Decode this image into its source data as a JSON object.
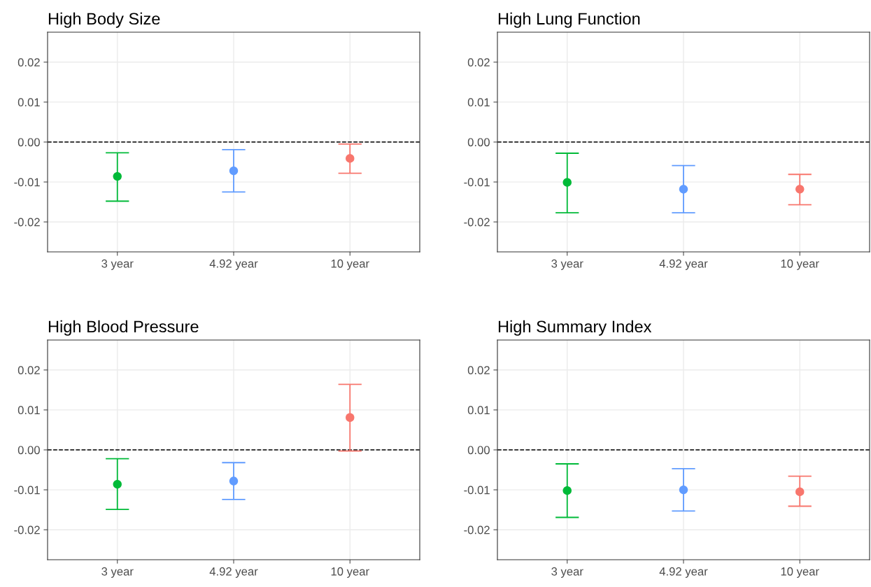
{
  "chart_data": [
    {
      "type": "scatter",
      "title": "High Body Size",
      "categories": [
        "3 year",
        "4.92 year",
        "10 year"
      ],
      "values": [
        -0.0086,
        -0.0072,
        -0.0041
      ],
      "colors": [
        "#00ba38",
        "#619cff",
        "#f8766d"
      ],
      "errors": [
        [
          -0.0148,
          -0.0027
        ],
        [
          -0.0125,
          -0.0019
        ],
        [
          -0.0078,
          -0.0005
        ]
      ],
      "ylim": [
        -0.0275,
        0.0275
      ],
      "yticks": [
        {
          "value": -0.02,
          "label": "-0.02"
        },
        {
          "value": -0.01,
          "label": "-0.01"
        },
        {
          "value": 0,
          "label": "0.00"
        },
        {
          "value": 0.01,
          "label": "0.01"
        },
        {
          "value": 0.02,
          "label": "0.02"
        }
      ],
      "grid": true,
      "marker": "circle",
      "ref_lines": [
        {
          "axis": "y",
          "value": 0,
          "color": "#000000",
          "line_style": "dashed"
        }
      ]
    },
    {
      "type": "scatter",
      "title": "High Lung Function",
      "categories": [
        "3 year",
        "4.92 year",
        "10 year"
      ],
      "values": [
        -0.0101,
        -0.0118,
        -0.0118
      ],
      "colors": [
        "#00ba38",
        "#619cff",
        "#f8766d"
      ],
      "errors": [
        [
          -0.0177,
          -0.0028
        ],
        [
          -0.0177,
          -0.0059
        ],
        [
          -0.0157,
          -0.0081
        ]
      ],
      "ylim": [
        -0.0275,
        0.0275
      ],
      "yticks": [
        {
          "value": -0.02,
          "label": "-0.02"
        },
        {
          "value": -0.01,
          "label": "-0.01"
        },
        {
          "value": 0,
          "label": "0.00"
        },
        {
          "value": 0.01,
          "label": "0.01"
        },
        {
          "value": 0.02,
          "label": "0.02"
        }
      ],
      "grid": true,
      "marker": "circle",
      "ref_lines": [
        {
          "axis": "y",
          "value": 0,
          "color": "#000000",
          "line_style": "dashed"
        }
      ]
    },
    {
      "type": "scatter",
      "title": "High Blood Pressure",
      "categories": [
        "3 year",
        "4.92 year",
        "10 year"
      ],
      "values": [
        -0.0086,
        -0.0078,
        0.0081
      ],
      "colors": [
        "#00ba38",
        "#619cff",
        "#f8766d"
      ],
      "errors": [
        [
          -0.0149,
          -0.0022
        ],
        [
          -0.0124,
          -0.0032
        ],
        [
          -0.0003,
          0.0164
        ]
      ],
      "ylim": [
        -0.0275,
        0.0275
      ],
      "yticks": [
        {
          "value": -0.02,
          "label": "-0.02"
        },
        {
          "value": -0.01,
          "label": "-0.01"
        },
        {
          "value": 0,
          "label": "0.00"
        },
        {
          "value": 0.01,
          "label": "0.01"
        },
        {
          "value": 0.02,
          "label": "0.02"
        }
      ],
      "grid": true,
      "marker": "circle",
      "ref_lines": [
        {
          "axis": "y",
          "value": 0,
          "color": "#000000",
          "line_style": "dashed"
        }
      ]
    },
    {
      "type": "scatter",
      "title": "High Summary Index",
      "categories": [
        "3 year",
        "4.92 year",
        "10 year"
      ],
      "values": [
        -0.0102,
        -0.01,
        -0.0105
      ],
      "colors": [
        "#00ba38",
        "#619cff",
        "#f8766d"
      ],
      "errors": [
        [
          -0.0169,
          -0.0035
        ],
        [
          -0.0153,
          -0.0047
        ],
        [
          -0.0141,
          -0.0066
        ]
      ],
      "ylim": [
        -0.0275,
        0.0275
      ],
      "yticks": [
        {
          "value": -0.02,
          "label": "-0.02"
        },
        {
          "value": -0.01,
          "label": "-0.01"
        },
        {
          "value": 0,
          "label": "0.00"
        },
        {
          "value": 0.01,
          "label": "0.01"
        },
        {
          "value": 0.02,
          "label": "0.02"
        }
      ],
      "grid": true,
      "marker": "circle",
      "ref_lines": [
        {
          "axis": "y",
          "value": 0,
          "color": "#000000",
          "line_style": "dashed"
        }
      ]
    }
  ]
}
